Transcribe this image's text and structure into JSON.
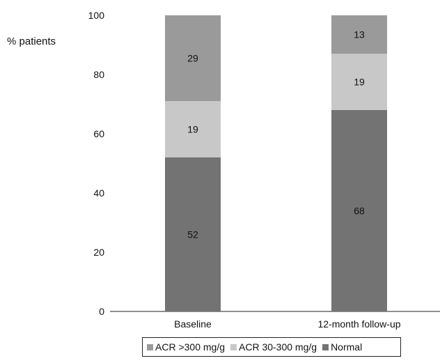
{
  "chart_data": {
    "type": "bar",
    "stacked": true,
    "categories": [
      "Baseline",
      "12-month follow-up"
    ],
    "series": [
      {
        "name": "Normal",
        "values": [
          52,
          68
        ],
        "color": "#737373"
      },
      {
        "name": "ACR 30-300 mg/g",
        "values": [
          19,
          19
        ],
        "color": "#c8c8c8"
      },
      {
        "name": "ACR >300 mg/g",
        "values": [
          29,
          13
        ],
        "color": "#9a9a9a"
      }
    ],
    "data_labels": [
      [
        "52",
        "68"
      ],
      [
        "19",
        "19"
      ],
      [
        "29",
        "13"
      ]
    ],
    "ylabel": "% patients",
    "xlabel": "",
    "ylim": [
      0,
      100
    ],
    "yticks": [
      0,
      20,
      40,
      60,
      80,
      100
    ],
    "legend": {
      "position": "bottom",
      "entries": [
        "ACR >300 mg/g",
        "ACR 30-300 mg/g",
        "Normal"
      ]
    },
    "grid": false
  }
}
